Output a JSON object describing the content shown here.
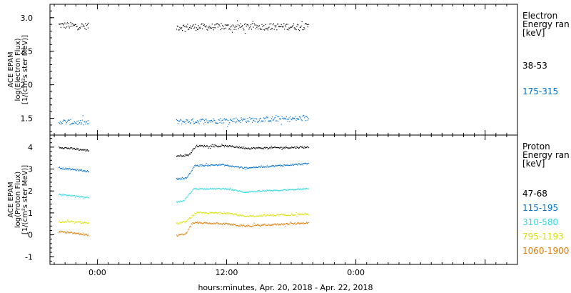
{
  "chart_data": [
    {
      "type": "scatter",
      "panel": "electron",
      "ylabel_lines": [
        "ACE EPAM",
        "log(Electron Flux)",
        "[1/(cm²s ster MeV)]"
      ],
      "ylim": [
        1.25,
        3.2
      ],
      "yticks": [
        1.5,
        2.0,
        2.5,
        3.0
      ],
      "ytick_labels": [
        "1.5",
        "2.0",
        "2.5",
        "3.0"
      ],
      "legend_title_lines": [
        "Electron",
        "Energy ran",
        "[keV]"
      ],
      "gaps_hours": [
        [
          -0.8,
          7.3
        ]
      ],
      "series": [
        {
          "name": "38-53",
          "color": "#000000",
          "start": -0.9,
          "end": 19.6,
          "base": 2.87,
          "noise": 0.05,
          "dense": false,
          "segments": [
            [
              -3.6,
              2.89
            ],
            [
              -0.9,
              2.87
            ],
            [
              7.3,
              2.86
            ],
            [
              19.6,
              2.87
            ]
          ]
        },
        {
          "name": "175-315",
          "color": "#0070d0",
          "start": -0.9,
          "end": 19.6,
          "base": 1.45,
          "noise": 0.04,
          "dense": false,
          "segments": [
            [
              -3.6,
              1.45
            ],
            [
              -0.9,
              1.43
            ],
            [
              7.3,
              1.45
            ],
            [
              19.6,
              1.5
            ]
          ]
        }
      ]
    },
    {
      "type": "scatter",
      "panel": "proton",
      "ylabel_lines": [
        "ACE EPAM",
        "log(Proton Flux)",
        "[1/(cm²s ster MeV)]"
      ],
      "ylim": [
        -1.35,
        4.55
      ],
      "yticks": [
        -1,
        0,
        1,
        2,
        3,
        4
      ],
      "ytick_labels": [
        "-1",
        "0",
        "1",
        "2",
        "3",
        "4"
      ],
      "legend_title_lines": [
        "Proton",
        "Energy ran",
        "[keV]"
      ],
      "gaps_hours": [
        [
          -0.8,
          7.3
        ]
      ],
      "series": [
        {
          "name": "47-68",
          "color": "#000000",
          "noise": 0.04,
          "segments": [
            [
              -3.6,
              4.0
            ],
            [
              -0.9,
              3.85
            ],
            [
              7.3,
              3.6
            ],
            [
              8.5,
              3.65
            ],
            [
              9.1,
              4.05
            ],
            [
              12.0,
              4.05
            ],
            [
              14.0,
              3.95
            ],
            [
              19.6,
              4.0
            ]
          ]
        },
        {
          "name": "115-195",
          "color": "#0070d0",
          "noise": 0.035,
          "segments": [
            [
              -3.6,
              3.05
            ],
            [
              -0.9,
              2.9
            ],
            [
              7.3,
              2.55
            ],
            [
              8.3,
              2.6
            ],
            [
              9.0,
              3.15
            ],
            [
              11.5,
              3.2
            ],
            [
              13.6,
              3.05
            ],
            [
              19.6,
              3.25
            ]
          ]
        },
        {
          "name": "310-580",
          "color": "#30d8e0",
          "noise": 0.03,
          "segments": [
            [
              -3.6,
              1.85
            ],
            [
              -0.9,
              1.7
            ],
            [
              7.3,
              1.5
            ],
            [
              8.0,
              1.55
            ],
            [
              8.9,
              2.1
            ],
            [
              12.0,
              2.1
            ],
            [
              13.6,
              1.95
            ],
            [
              19.6,
              2.1
            ]
          ]
        },
        {
          "name": "795-1193",
          "color": "#d8e000",
          "noise": 0.04,
          "segments": [
            [
              -3.6,
              0.6
            ],
            [
              -0.9,
              0.55
            ],
            [
              7.3,
              0.5
            ],
            [
              8.2,
              0.6
            ],
            [
              9.1,
              1.0
            ],
            [
              12.0,
              1.0
            ],
            [
              13.6,
              0.85
            ],
            [
              19.6,
              0.95
            ]
          ]
        },
        {
          "name": "1060-1900",
          "color": "#e07800",
          "noise": 0.04,
          "segments": [
            [
              -3.6,
              0.15
            ],
            [
              -0.9,
              0.0
            ],
            [
              7.3,
              -0.05
            ],
            [
              8.2,
              0.05
            ],
            [
              8.8,
              0.55
            ],
            [
              12.0,
              0.5
            ],
            [
              13.6,
              0.4
            ],
            [
              19.6,
              0.55
            ]
          ]
        }
      ]
    }
  ],
  "x_axis": {
    "xlim_hours": [
      -4.4,
      39.0
    ],
    "major_ticks_hours": [
      0,
      12,
      24,
      36
    ],
    "tick_labels": [
      "0:00",
      "12:00",
      "0:00"
    ],
    "tick_label_hours": [
      0,
      12,
      24
    ],
    "minor_step_hours": 1,
    "xlabel": "hours:minutes, Apr. 20, 2018 - Apr. 22, 2018"
  }
}
